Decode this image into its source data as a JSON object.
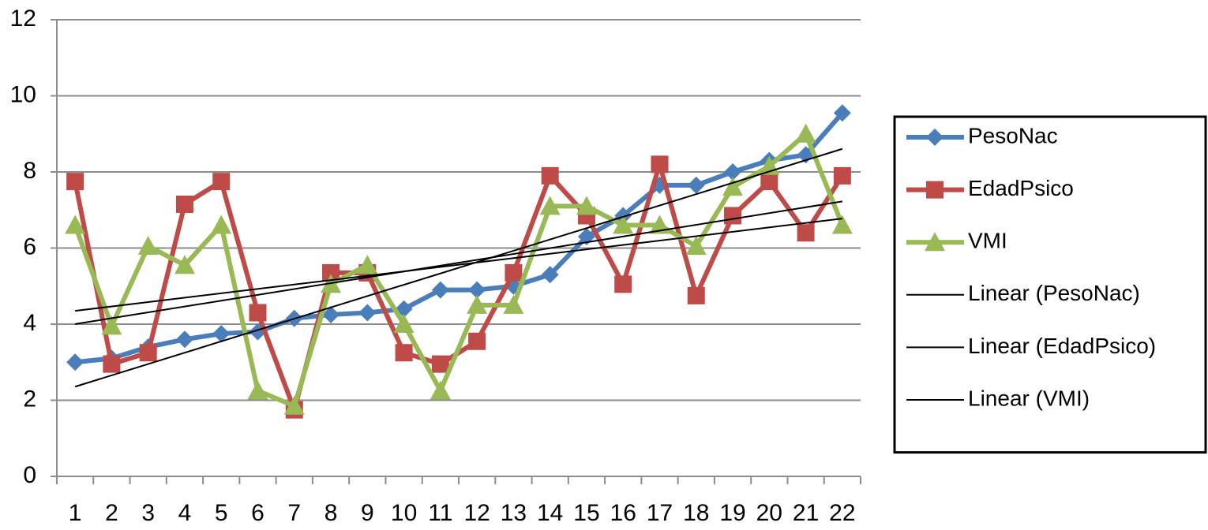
{
  "chart_data": {
    "type": "line",
    "categories": [
      "1",
      "2",
      "3",
      "4",
      "5",
      "6",
      "7",
      "8",
      "9",
      "10",
      "11",
      "12",
      "13",
      "14",
      "15",
      "16",
      "17",
      "18",
      "19",
      "20",
      "21",
      "22"
    ],
    "series": [
      {
        "name": "PesoNac",
        "color": "#4a7ebb",
        "marker": "diamond",
        "trendline": "Linear (PesoNac)",
        "values": [
          3.0,
          3.1,
          3.4,
          3.6,
          3.75,
          3.8,
          4.15,
          4.25,
          4.3,
          4.4,
          4.9,
          4.9,
          5.0,
          5.3,
          6.3,
          6.85,
          7.65,
          7.65,
          8.0,
          8.3,
          8.45,
          9.55
        ]
      },
      {
        "name": "EdadPsico",
        "color": "#be4b48",
        "marker": "square",
        "trendline": "Linear (EdadPsico)",
        "values": [
          7.75,
          2.95,
          3.25,
          7.15,
          7.75,
          4.3,
          1.75,
          5.35,
          5.35,
          3.25,
          2.95,
          3.55,
          5.35,
          7.9,
          6.85,
          5.05,
          8.2,
          4.75,
          6.85,
          7.75,
          6.4,
          7.9
        ]
      },
      {
        "name": "VMI",
        "color": "#98b954",
        "marker": "triangle",
        "trendline": "Linear (VMI)",
        "values": [
          6.6,
          3.95,
          6.05,
          5.55,
          6.6,
          2.25,
          1.85,
          5.05,
          5.55,
          4.0,
          2.25,
          4.5,
          4.5,
          7.1,
          7.1,
          6.6,
          6.6,
          6.05,
          7.6,
          8.15,
          9.0,
          6.6
        ]
      }
    ],
    "trendline_color": "#000000",
    "ylim": [
      0,
      12
    ],
    "yticks": [
      0,
      2,
      4,
      6,
      8,
      10,
      12
    ],
    "grid": true,
    "legend": "right"
  }
}
